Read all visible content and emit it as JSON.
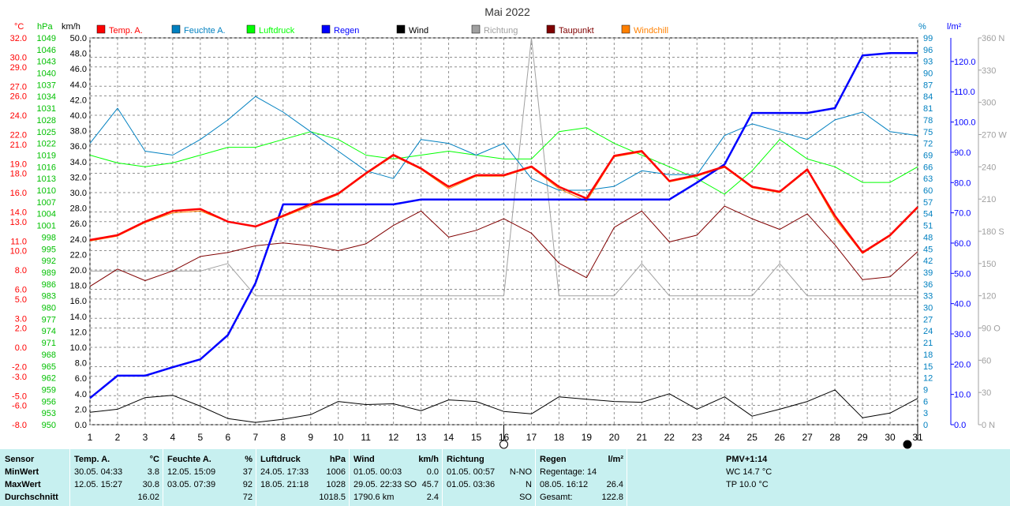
{
  "title": "Mai 2022",
  "axes": {
    "temp_unit": "°C",
    "press_unit": "hPa",
    "wind_unit": "km/h",
    "hum_unit": "%",
    "rain_unit": "l/m²",
    "temp_ticks": [
      "32.0",
      "30.0",
      "29.0",
      "27.0",
      "26.0",
      "24.0",
      "22.0",
      "21.0",
      "19.0",
      "18.0",
      "16.0",
      "14.0",
      "13.0",
      "11.0",
      "10.0",
      "8.0",
      "6.0",
      "5.0",
      "3.0",
      "2.0",
      "0.0",
      "-2.0",
      "-3.0",
      "-5.0",
      "-6.0",
      "-8.0"
    ],
    "temp_vals": [
      32,
      30,
      29,
      27,
      26,
      24,
      22,
      21,
      19,
      18,
      16,
      14,
      13,
      11,
      10,
      8,
      6,
      5,
      3,
      2,
      0,
      -2,
      -3,
      -5,
      -6,
      -8
    ],
    "press_ticks": [
      "1049",
      "1046",
      "1043",
      "1040",
      "1037",
      "1034",
      "1031",
      "1028",
      "1025",
      "1022",
      "1019",
      "1016",
      "1013",
      "1010",
      "1007",
      "1004",
      "1001",
      "998",
      "995",
      "992",
      "989",
      "986",
      "983",
      "980",
      "977",
      "974",
      "971",
      "968",
      "965",
      "962",
      "959",
      "956",
      "953",
      "950"
    ],
    "wind_ticks": [
      "50.0",
      "48.0",
      "46.0",
      "44.0",
      "42.0",
      "40.0",
      "38.0",
      "36.0",
      "34.0",
      "32.0",
      "30.0",
      "28.0",
      "26.0",
      "24.0",
      "22.0",
      "20.0",
      "18.0",
      "16.0",
      "14.0",
      "12.0",
      "10.0",
      "8.0",
      "6.0",
      "4.0",
      "2.0",
      "0.0"
    ],
    "hum_ticks": [
      "99",
      "96",
      "93",
      "90",
      "87",
      "84",
      "81",
      "78",
      "75",
      "72",
      "69",
      "66",
      "63",
      "60",
      "57",
      "54",
      "51",
      "48",
      "45",
      "42",
      "39",
      "36",
      "33",
      "30",
      "27",
      "24",
      "21",
      "18",
      "15",
      "12",
      "9",
      "6",
      "3",
      "0"
    ],
    "rain_ticks": [
      "120.0",
      "110.0",
      "100.0",
      "90.0",
      "80.0",
      "70.0",
      "60.0",
      "50.0",
      "40.0",
      "30.0",
      "20.0",
      "10.0",
      "0.0"
    ],
    "dir_ticks": [
      "360 N",
      "330",
      "300",
      "270 W",
      "240",
      "210",
      "180 S",
      "150",
      "120",
      "90 O",
      "60",
      "30",
      "0 N"
    ],
    "days": [
      "1",
      "2",
      "3",
      "4",
      "5",
      "6",
      "7",
      "8",
      "9",
      "10",
      "11",
      "12",
      "13",
      "14",
      "15",
      "16",
      "17",
      "18",
      "19",
      "20",
      "21",
      "22",
      "23",
      "24",
      "25",
      "26",
      "27",
      "28",
      "29",
      "30",
      "31"
    ]
  },
  "legend": [
    {
      "label": "Temp. A.",
      "color": "#ff0000"
    },
    {
      "label": "Feuchte A.",
      "color": "#0080c0"
    },
    {
      "label": "Luftdruck",
      "color": "#00ff00"
    },
    {
      "label": "Regen",
      "color": "#0000ff"
    },
    {
      "label": "Wind",
      "color": "#000000"
    },
    {
      "label": "Richtung",
      "color": "#a0a0a0"
    },
    {
      "label": "Taupunkt",
      "color": "#800000"
    },
    {
      "label": "Windchill",
      "color": "#ff8000"
    }
  ],
  "chart_data": {
    "type": "line",
    "title": "Mai 2022",
    "x": [
      1,
      2,
      3,
      4,
      5,
      6,
      7,
      8,
      9,
      10,
      11,
      12,
      13,
      14,
      15,
      16,
      17,
      18,
      19,
      20,
      21,
      22,
      23,
      24,
      25,
      26,
      27,
      28,
      29,
      30,
      31
    ],
    "temp_ylim": [
      -8,
      32
    ],
    "series": [
      {
        "name": "Temp. A.",
        "color": "#ff0000",
        "axis": "temp",
        "values": [
          11.1,
          11.6,
          13.0,
          14.1,
          14.3,
          13.0,
          12.5,
          13.6,
          14.8,
          15.9,
          18.0,
          19.9,
          18.5,
          16.6,
          17.8,
          17.8,
          18.7,
          16.6,
          15.4,
          19.8,
          20.3,
          17.2,
          17.8,
          18.7,
          16.6,
          16.1,
          18.4,
          13.6,
          9.8,
          11.6,
          14.5
        ]
      },
      {
        "name": "Windchill",
        "color": "#ff8000",
        "axis": "temp",
        "values": [
          11.0,
          11.5,
          12.9,
          13.9,
          14.1,
          13.0,
          12.5,
          13.5,
          14.6,
          15.8,
          17.9,
          19.8,
          18.4,
          16.4,
          17.7,
          17.7,
          18.6,
          16.4,
          15.1,
          19.7,
          20.2,
          17.1,
          17.7,
          18.6,
          16.5,
          16.0,
          18.3,
          13.3,
          9.7,
          11.5,
          14.4
        ]
      },
      {
        "name": "Taupunkt",
        "color": "#800000",
        "axis": "temp",
        "values": [
          6.3,
          8.1,
          6.9,
          7.9,
          9.4,
          9.8,
          10.5,
          10.8,
          10.5,
          10.0,
          10.7,
          12.6,
          14.1,
          11.4,
          12.1,
          13.3,
          11.8,
          8.7,
          7.2,
          12.4,
          14.1,
          10.9,
          11.6,
          14.6,
          13.3,
          12.2,
          13.8,
          10.6,
          7.0,
          7.3,
          9.9
        ]
      },
      {
        "name": "Feuchte A.",
        "color": "#0080c0",
        "axis": "hum",
        "values": [
          72,
          81,
          70,
          69,
          73,
          78,
          84,
          80,
          75,
          70,
          65,
          63,
          73,
          72,
          69,
          72,
          63,
          60,
          60,
          61,
          65,
          64,
          64,
          74,
          77,
          75,
          73,
          78,
          80,
          75,
          74
        ]
      },
      {
        "name": "Luftdruck",
        "color": "#00ff00",
        "axis": "press",
        "values": [
          1019,
          1017,
          1016,
          1017,
          1019,
          1021,
          1021,
          1023,
          1025,
          1023,
          1019,
          1018,
          1019,
          1020,
          1019,
          1018,
          1018,
          1025,
          1026,
          1022,
          1019,
          1016,
          1013,
          1009,
          1015,
          1023,
          1018,
          1016,
          1012,
          1012,
          1016
        ]
      },
      {
        "name": "Regen",
        "color": "#0000ff",
        "axis": "rain",
        "values": [
          8.8,
          16.2,
          16.2,
          19.0,
          21.6,
          29.6,
          46.8,
          72.8,
          72.8,
          72.8,
          72.8,
          72.8,
          74.4,
          74.4,
          74.4,
          74.4,
          74.4,
          74.4,
          74.4,
          74.4,
          74.4,
          74.4,
          80.0,
          86.0,
          103.0,
          103.0,
          103.0,
          104.6,
          122.0,
          122.8,
          122.8
        ]
      },
      {
        "name": "Wind",
        "color": "#000000",
        "axis": "wind",
        "values": [
          1.6,
          2.0,
          3.5,
          3.8,
          2.4,
          0.8,
          0.3,
          0.7,
          1.3,
          3.0,
          2.6,
          2.7,
          1.8,
          3.2,
          3.0,
          1.7,
          1.4,
          3.6,
          3.3,
          3.0,
          2.9,
          4.0,
          2.0,
          3.6,
          1.1,
          2.0,
          3.0,
          4.5,
          0.9,
          1.5,
          3.4
        ]
      },
      {
        "name": "Richtung",
        "color": "#a0a0a0",
        "axis": "dir",
        "values": [
          143,
          143,
          143,
          143,
          143,
          150,
          120,
          120,
          120,
          120,
          120,
          120,
          120,
          120,
          120,
          120,
          360,
          120,
          120,
          120,
          150,
          120,
          120,
          120,
          120,
          150,
          120,
          120,
          120,
          120,
          120
        ]
      }
    ],
    "markers": {
      "new_moon_day": 16,
      "full_moon_day": 31
    }
  },
  "stats": {
    "headers": {
      "sensor": "Sensor",
      "temp": "Temp. A.",
      "temp_u": "°C",
      "hum": "Feuchte A.",
      "hum_u": "%",
      "press": "Luftdruck",
      "press_u": "hPa",
      "wind": "Wind",
      "wind_u": "km/h",
      "dir": "Richtung",
      "rain": "Regen",
      "rain_u": "l/m²",
      "pmv": "PMV+1:14"
    },
    "rows": [
      "MinWert",
      "MaxWert",
      "Durchschnitt"
    ],
    "temp": [
      {
        "t": "30.05.  04:33",
        "v": "3.8"
      },
      {
        "t": "12.05.  15:27",
        "v": "30.8"
      },
      {
        "t": "",
        "v": "16.02"
      }
    ],
    "hum": [
      {
        "t": "12.05.  15:09",
        "v": "37"
      },
      {
        "t": "03.05.  07:39",
        "v": "92"
      },
      {
        "t": "",
        "v": "72"
      }
    ],
    "press": [
      {
        "t": "24.05.  17:33",
        "v": "1006"
      },
      {
        "t": "18.05.  21:18",
        "v": "1028"
      },
      {
        "t": "",
        "v": "1018.5"
      }
    ],
    "wind": [
      {
        "t": "01.05.  00:03",
        "v": "0.0"
      },
      {
        "t": "29.05.  22:33 SO",
        "v": "45.7"
      },
      {
        "t": "1790.6 km",
        "v": "2.4"
      }
    ],
    "dir": [
      {
        "t": "01.05.  00:57",
        "v": "N-NO"
      },
      {
        "t": "01.05.  03:36",
        "v": "N"
      },
      {
        "t": "",
        "v": "SO"
      }
    ],
    "rain": [
      {
        "t": "Regentage: 14",
        "v": ""
      },
      {
        "t": "08.05.  16:12",
        "v": "26.4"
      },
      {
        "t": "Gesamt:",
        "v": "122.8"
      }
    ],
    "pmv": [
      "WC 14.7 °C",
      "TP 10.0 °C"
    ]
  }
}
